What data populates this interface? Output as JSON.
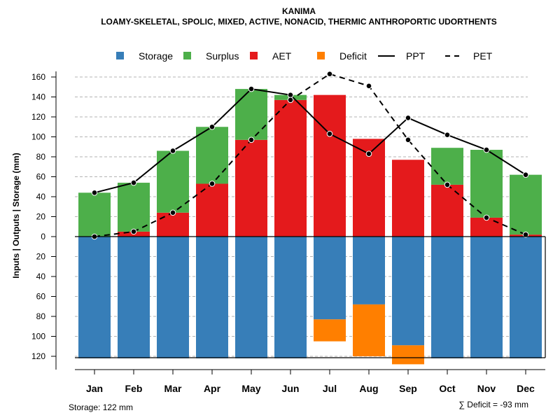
{
  "chart_data": {
    "type": "bar",
    "title": "KANIMA",
    "subtitle": "LOAMY-SKELETAL, SPOLIC, MIXED, ACTIVE, NONACID, THERMIC ANTHROPORTIC UDORTHENTS",
    "ylabel": "Inputs | Outputs | Storage    (mm)",
    "ylim": [
      -130,
      165
    ],
    "y_ticks": [
      160,
      140,
      120,
      100,
      80,
      60,
      40,
      20,
      0,
      -20,
      -40,
      -60,
      -80,
      -100,
      -120
    ],
    "y_tick_labels": [
      "160",
      "140",
      "120",
      "100",
      "80",
      "60",
      "40",
      "20",
      "0",
      "20",
      "40",
      "60",
      "80",
      "100",
      "120"
    ],
    "grid": true,
    "categories": [
      "Jan",
      "Feb",
      "Mar",
      "Apr",
      "May",
      "Jun",
      "Jul",
      "Aug",
      "Sep",
      "Oct",
      "Nov",
      "Dec"
    ],
    "legend": {
      "position": "top",
      "items": [
        {
          "key": "storage",
          "label": "Storage",
          "kind": "box",
          "color": "#377EB8"
        },
        {
          "key": "surplus",
          "label": "Surplus",
          "kind": "box",
          "color": "#4DAF4A"
        },
        {
          "key": "aet",
          "label": "AET",
          "kind": "box",
          "color": "#E41A1C"
        },
        {
          "key": "deficit",
          "label": "Deficit",
          "kind": "box",
          "color": "#FF7F00"
        },
        {
          "key": "ppt",
          "label": "PPT",
          "kind": "solid-line",
          "color": "#000000"
        },
        {
          "key": "pet",
          "label": "PET",
          "kind": "dashed-line",
          "color": "#000000"
        }
      ]
    },
    "series": [
      {
        "name": "Storage",
        "color": "#377EB8",
        "values": [
          -122,
          -122,
          -122,
          -122,
          -122,
          -122,
          -83,
          -68,
          -109,
          -122,
          -122,
          -122
        ]
      },
      {
        "name": "AET",
        "color": "#E41A1C",
        "values": [
          0,
          5,
          24,
          53,
          97,
          137,
          142,
          98,
          77,
          52,
          19,
          2
        ]
      },
      {
        "name": "Surplus",
        "color": "#4DAF4A",
        "values": [
          44,
          49,
          62,
          57,
          51,
          5,
          0,
          0,
          0,
          37,
          68,
          60
        ]
      },
      {
        "name": "Deficit",
        "color": "#FF7F00",
        "values": [
          0,
          0,
          0,
          0,
          0,
          0,
          22,
          52,
          19,
          0,
          0,
          0
        ]
      },
      {
        "name": "PPT",
        "type": "line",
        "style": "solid",
        "color": "#000000",
        "values": [
          44,
          54,
          86,
          110,
          148,
          142,
          103,
          83,
          119,
          102,
          87,
          62
        ]
      },
      {
        "name": "PET",
        "type": "line",
        "style": "dashed",
        "color": "#000000",
        "values": [
          0,
          5,
          24,
          53,
          97,
          137,
          163,
          151,
          97,
          52,
          19,
          2
        ]
      }
    ],
    "annotations": {
      "storage_note": "Storage: 122 mm",
      "deficit_note": "∑ Deficit = -93 mm"
    }
  }
}
